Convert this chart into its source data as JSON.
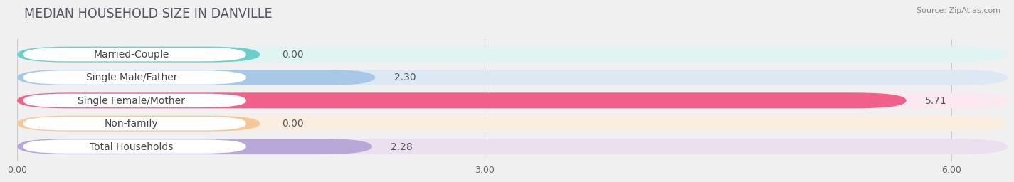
{
  "title": "MEDIAN HOUSEHOLD SIZE IN DANVILLE",
  "source": "Source: ZipAtlas.com",
  "categories": [
    "Married-Couple",
    "Single Male/Father",
    "Single Female/Mother",
    "Non-family",
    "Total Households"
  ],
  "values": [
    0.0,
    2.3,
    5.71,
    0.0,
    2.28
  ],
  "bar_colors": [
    "#6dcdc8",
    "#a8c8e8",
    "#f0608a",
    "#f5c89a",
    "#b8a8d8"
  ],
  "bar_bg_colors": [
    "#e0f4f4",
    "#dde8f5",
    "#fce8f0",
    "#faeee0",
    "#eae0f0"
  ],
  "label_bg_color": "#ffffff",
  "xlim": [
    0,
    6.36
  ],
  "xticks": [
    0.0,
    3.0,
    6.0
  ],
  "xtick_labels": [
    "0.00",
    "3.00",
    "6.00"
  ],
  "value_fontsize": 10,
  "label_fontsize": 10,
  "title_fontsize": 14,
  "title_color": "#555566",
  "background_color": "#f0f0f0",
  "grid_color": "#cccccc",
  "text_color": "#555555"
}
